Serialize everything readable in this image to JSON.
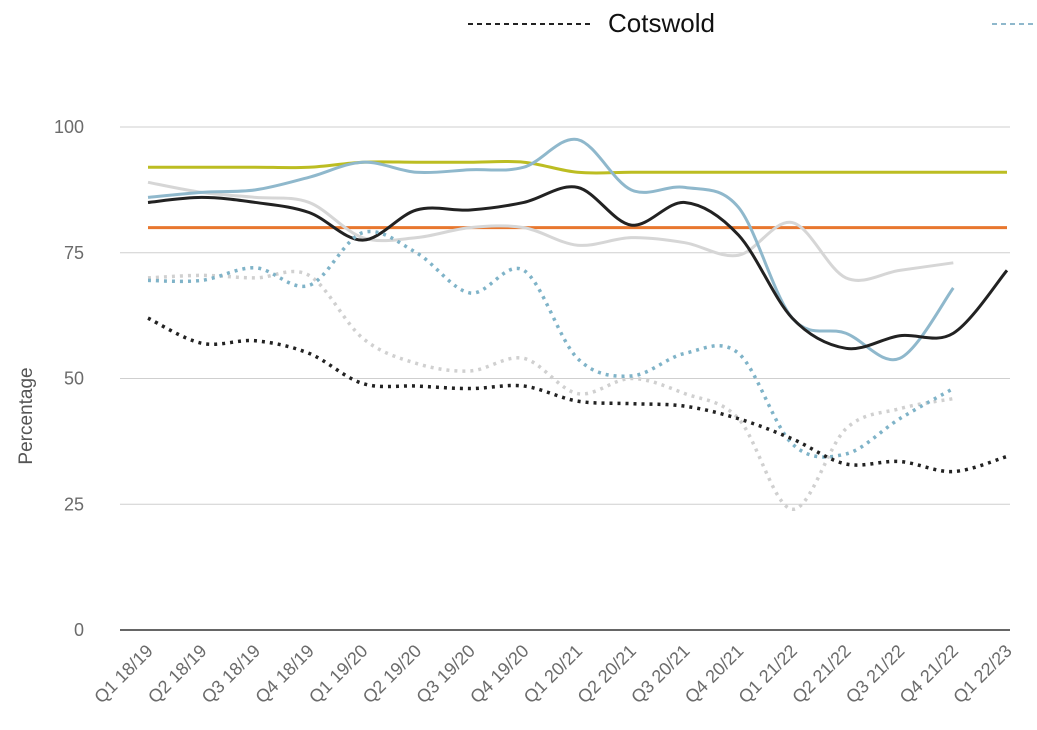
{
  "chart_data": {
    "type": "line",
    "ylabel": "Percentage",
    "xlabel": "",
    "ylim": [
      0,
      100
    ],
    "yticks": [
      0,
      25,
      50,
      75,
      100
    ],
    "grid": true,
    "legend": {
      "position": "top",
      "visible_entry": "Cotswold"
    },
    "categories": [
      "Q1 18/19",
      "Q2 18/19",
      "Q3 18/19",
      "Q4 18/19",
      "Q1 19/20",
      "Q2 19/20",
      "Q3 19/20",
      "Q4 19/20",
      "Q1 20/21",
      "Q2 20/21",
      "Q3 20/21",
      "Q4 20/21",
      "Q1 21/22",
      "Q2 21/22",
      "Q3 21/22",
      "Q4 21/22",
      "Q1 22/23"
    ],
    "series": [
      {
        "key": "olive-solid",
        "color": "#bcbd22",
        "style": "solid",
        "values": [
          92,
          92,
          92,
          92,
          93,
          93,
          93,
          93,
          91,
          91,
          91,
          91,
          91,
          91,
          91,
          91,
          91
        ]
      },
      {
        "key": "orange-solid",
        "color": "#e8772e",
        "style": "solid",
        "values": [
          80,
          80,
          80,
          80,
          80,
          80,
          80,
          80,
          80,
          80,
          80,
          80,
          80,
          80,
          80,
          80,
          80
        ]
      },
      {
        "key": "lightgrey-solid",
        "color": "#d6d6d6",
        "style": "solid",
        "values": [
          89,
          87,
          86,
          85,
          78,
          78,
          80,
          80,
          76.5,
          78,
          77,
          74.5,
          81,
          70,
          71.5,
          73,
          null
        ]
      },
      {
        "key": "blue-solid",
        "color": "#8fb8cc",
        "style": "solid",
        "values": [
          86,
          87,
          87.5,
          90,
          93,
          91,
          91.5,
          92,
          97.5,
          87.5,
          88,
          84,
          62,
          59,
          54,
          68,
          null
        ]
      },
      {
        "key": "black-solid",
        "color": "#222222",
        "style": "solid",
        "values": [
          85,
          86,
          85,
          83,
          77.5,
          83.5,
          83.5,
          85,
          88,
          80.5,
          85,
          78.5,
          62,
          56,
          58.5,
          59,
          71.5
        ]
      },
      {
        "key": "lightgrey-dotted",
        "color": "#d0d0d0",
        "style": "dotted",
        "values": [
          70,
          70.5,
          70,
          70.5,
          58,
          53,
          51.5,
          54,
          47,
          50,
          47,
          42,
          24,
          40,
          44,
          46,
          null
        ]
      },
      {
        "key": "blue-dotted",
        "color": "#7fb3c8",
        "style": "dotted",
        "values": [
          69.5,
          69.5,
          72,
          68.5,
          79,
          75,
          67,
          71.5,
          54,
          50.5,
          55,
          55,
          37,
          35,
          42,
          48,
          null
        ]
      },
      {
        "key": "black-dotted",
        "name": "Cotswold",
        "color": "#222222",
        "style": "dotted",
        "values": [
          62,
          57,
          57.5,
          55,
          49,
          48.5,
          48,
          48.5,
          45.5,
          45,
          44.5,
          42,
          38,
          33,
          33.5,
          31.5,
          34.5
        ]
      }
    ]
  }
}
